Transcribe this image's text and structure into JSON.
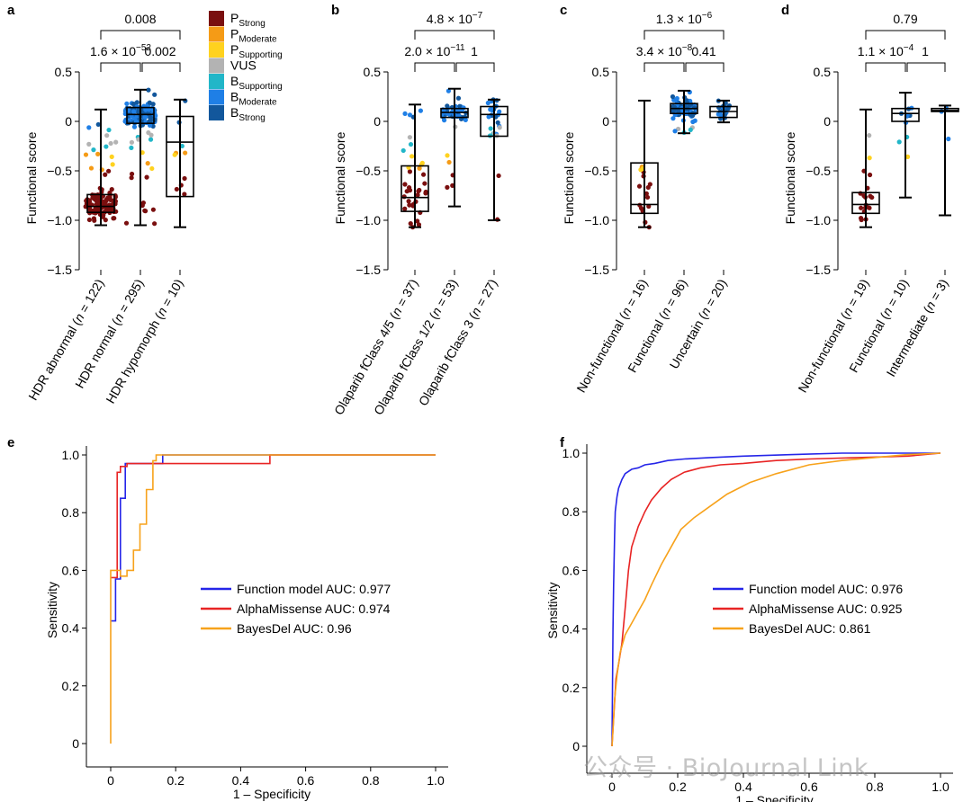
{
  "colors": {
    "P_Strong": "#7a0f0f",
    "P_Moderate": "#f59b16",
    "P_Supporting": "#ffd21f",
    "VUS": "#b3b3b3",
    "B_Supporting": "#21b6c8",
    "B_Moderate": "#1f7fe6",
    "B_Strong": "#12579c",
    "roc_function": "#2525e8",
    "roc_alpha": "#e82424",
    "roc_bayes": "#f7a21b"
  },
  "legend": [
    {
      "key": "P_Strong",
      "base": "P",
      "sub": "Strong"
    },
    {
      "key": "P_Moderate",
      "base": "P",
      "sub": "Moderate"
    },
    {
      "key": "P_Supporting",
      "base": "P",
      "sub": "Supporting"
    },
    {
      "key": "VUS",
      "base": "VUS",
      "sub": ""
    },
    {
      "key": "B_Supporting",
      "base": "B",
      "sub": "Supporting"
    },
    {
      "key": "B_Moderate",
      "base": "B",
      "sub": "Moderate"
    },
    {
      "key": "B_Strong",
      "base": "B",
      "sub": "Strong"
    }
  ],
  "watermark": "公众号 · BioJournal Link",
  "chart_data": [
    {
      "panel": "a",
      "type": "box",
      "ylabel": "Functional score",
      "ylim": [
        -1.5,
        0.5
      ],
      "yticks": [
        0.5,
        0,
        -0.5,
        -1.0,
        -1.5
      ],
      "ytick_labels": [
        "0.5",
        "0",
        "−0.5",
        "−1.0",
        "−1.5"
      ],
      "categories": [
        "HDR abnormal (n = 122)",
        "HDR normal (n = 295)",
        "HDR hypomorph (n = 10)"
      ],
      "cat_labels": [
        {
          "pre": "HDR abnormal (",
          "it": "n",
          "post": " = 122)"
        },
        {
          "pre": "HDR normal (",
          "it": "n",
          "post": " = 295)"
        },
        {
          "pre": "HDR hypomorph (",
          "it": "n",
          "post": " = 10)"
        }
      ],
      "boxes": [
        {
          "min": -1.05,
          "q1": -0.92,
          "median": -0.86,
          "q3": -0.74,
          "max": 0.12
        },
        {
          "min": -1.05,
          "q1": -0.02,
          "median": 0.07,
          "q3": 0.14,
          "max": 0.32
        },
        {
          "min": -1.07,
          "q1": -0.76,
          "median": -0.21,
          "q3": 0.05,
          "max": 0.22
        }
      ],
      "pvalues": [
        {
          "from": 0,
          "to": 1,
          "level": 1,
          "mant": "1.6",
          "exp": "−52"
        },
        {
          "from": 1,
          "to": 2,
          "level": 1,
          "text": "0.002"
        },
        {
          "from": 0,
          "to": 2,
          "level": 2,
          "text": "0.008"
        }
      ]
    },
    {
      "panel": "b",
      "type": "box",
      "ylabel": "Functional score",
      "ylim": [
        -1.5,
        0.5
      ],
      "yticks": [
        0.5,
        0,
        -0.5,
        -1.0,
        -1.5
      ],
      "ytick_labels": [
        "0.5",
        "0",
        "−0.5",
        "−1.0",
        "−1.5"
      ],
      "categories": [
        "Olaparib fClass 4/5 (n = 37)",
        "Olaparib fClass 1/2 (n = 53)",
        "Olaparib fClass 3 (n = 27)"
      ],
      "cat_labels": [
        {
          "pre": "Olaparib fClass 4/5 (",
          "it": "n",
          "post": " = 37)"
        },
        {
          "pre": "Olaparib fClass 1/2 (",
          "it": "n",
          "post": " = 53)"
        },
        {
          "pre": "Olaparib fClass 3 (",
          "it": "n",
          "post": " = 27)"
        }
      ],
      "boxes": [
        {
          "min": -1.07,
          "q1": -0.91,
          "median": -0.77,
          "q3": -0.45,
          "max": 0.17
        },
        {
          "min": -0.86,
          "q1": 0.04,
          "median": 0.09,
          "q3": 0.13,
          "max": 0.33
        },
        {
          "min": -1.0,
          "q1": -0.15,
          "median": 0.07,
          "q3": 0.15,
          "max": 0.22
        }
      ],
      "pvalues": [
        {
          "from": 0,
          "to": 1,
          "level": 1,
          "mant": "2.0",
          "exp": "−11"
        },
        {
          "from": 1,
          "to": 2,
          "level": 1,
          "text": "1"
        },
        {
          "from": 0,
          "to": 2,
          "level": 2,
          "mant": "4.8",
          "exp": "−7"
        }
      ]
    },
    {
      "panel": "c",
      "type": "box",
      "ylabel": "Functional score",
      "ylim": [
        -1.5,
        0.5
      ],
      "yticks": [
        0.5,
        0,
        -0.5,
        -1.0,
        -1.5
      ],
      "ytick_labels": [
        "0.5",
        "0",
        "−0.5",
        "−1.0",
        "−1.5"
      ],
      "categories": [
        "Non-functional (n = 16)",
        "Functional (n = 96)",
        "Uncertain (n = 20)"
      ],
      "cat_labels": [
        {
          "pre": "Non-functional (",
          "it": "n",
          "post": " = 16)"
        },
        {
          "pre": "Functional (",
          "it": "n",
          "post": " = 96)"
        },
        {
          "pre": "Uncertain (",
          "it": "n",
          "post": " = 20)"
        }
      ],
      "boxes": [
        {
          "min": -1.07,
          "q1": -0.93,
          "median": -0.84,
          "q3": -0.42,
          "max": 0.21
        },
        {
          "min": -0.12,
          "q1": 0.08,
          "median": 0.13,
          "q3": 0.18,
          "max": 0.31
        },
        {
          "min": -0.01,
          "q1": 0.04,
          "median": 0.1,
          "q3": 0.15,
          "max": 0.21
        }
      ],
      "pvalues": [
        {
          "from": 0,
          "to": 1,
          "level": 1,
          "mant": "3.4",
          "exp": "−8"
        },
        {
          "from": 1,
          "to": 2,
          "level": 1,
          "text": "0.41"
        },
        {
          "from": 0,
          "to": 2,
          "level": 2,
          "mant": "1.3",
          "exp": "−6"
        }
      ]
    },
    {
      "panel": "d",
      "type": "box",
      "ylabel": "Functional score",
      "ylim": [
        -1.5,
        0.5
      ],
      "yticks": [
        0.5,
        0,
        -0.5,
        -1.0,
        -1.5
      ],
      "ytick_labels": [
        "0.5",
        "0",
        "−0.5",
        "−1.0",
        "−1.5"
      ],
      "categories": [
        "Non-functional (n = 19)",
        "Functional (n = 10)",
        "Intermediate (n = 3)"
      ],
      "cat_labels": [
        {
          "pre": "Non-functional (",
          "it": "n",
          "post": " = 19)"
        },
        {
          "pre": "Functional (",
          "it": "n",
          "post": " = 10)"
        },
        {
          "pre": "Intermediate (",
          "it": "n",
          "post": " = 3)"
        }
      ],
      "boxes": [
        {
          "min": -1.07,
          "q1": -0.93,
          "median": -0.84,
          "q3": -0.72,
          "max": 0.12
        },
        {
          "min": -0.77,
          "q1": 0.0,
          "median": 0.08,
          "q3": 0.13,
          "max": 0.29
        },
        {
          "min": -0.95,
          "q1": 0.1,
          "median": 0.11,
          "q3": 0.13,
          "max": 0.16
        }
      ],
      "pvalues": [
        {
          "from": 0,
          "to": 1,
          "level": 1,
          "mant": "1.1",
          "exp": "−4"
        },
        {
          "from": 1,
          "to": 2,
          "level": 1,
          "text": "1"
        },
        {
          "from": 0,
          "to": 2,
          "level": 2,
          "text": "0.79"
        }
      ]
    },
    {
      "panel": "e",
      "type": "line",
      "xlabel": "1 – Specificity",
      "ylabel": "Sensitivity",
      "xlim": [
        0,
        1
      ],
      "ylim": [
        0,
        1
      ],
      "xticks": [
        0,
        0.2,
        0.4,
        0.6,
        0.8,
        1.0
      ],
      "xtick_labels": [
        "0",
        "0.2",
        "0.4",
        "0.6",
        "0.8",
        "1.0"
      ],
      "yticks": [
        0,
        0.2,
        0.4,
        0.6,
        0.8,
        1.0
      ],
      "ytick_labels": [
        "0",
        "0.2",
        "0.4",
        "0.6",
        "0.8",
        "1.0"
      ],
      "legend_placement": "center-right",
      "series": [
        {
          "name": "Function model AUC: 0.977",
          "color": "#2525e8",
          "x": [
            0,
            0.015,
            0.015,
            0.03,
            0.03,
            0.045,
            0.045,
            0.08,
            0.08,
            0.085,
            0.085,
            0.16,
            0.16,
            1.0
          ],
          "y": [
            0.425,
            0.425,
            0.57,
            0.57,
            0.85,
            0.85,
            0.97,
            0.97,
            0.97,
            0.97,
            0.97,
            0.97,
            1.0,
            1.0
          ]
        },
        {
          "name": "AlphaMissense AUC: 0.974",
          "color": "#e82424",
          "x": [
            0,
            0.02,
            0.02,
            0.03,
            0.03,
            0.05,
            0.05,
            0.49,
            0.49,
            1.0
          ],
          "y": [
            0.575,
            0.575,
            0.94,
            0.94,
            0.96,
            0.96,
            0.97,
            0.97,
            1.0,
            1.0
          ]
        },
        {
          "name": "BayesDel AUC: 0.96",
          "color": "#f7a21b",
          "x": [
            0,
            0,
            0.03,
            0.03,
            0.05,
            0.05,
            0.07,
            0.07,
            0.09,
            0.09,
            0.11,
            0.11,
            0.13,
            0.13,
            0.14,
            0.14,
            1.0
          ],
          "y": [
            0,
            0.6,
            0.6,
            0.58,
            0.58,
            0.6,
            0.6,
            0.67,
            0.67,
            0.76,
            0.76,
            0.88,
            0.88,
            0.98,
            0.98,
            1.0,
            1.0
          ]
        }
      ]
    },
    {
      "panel": "f",
      "type": "line",
      "xlabel": "1 – Specificity",
      "ylabel": "Sensitivity",
      "xlim": [
        0,
        1
      ],
      "ylim": [
        0,
        1
      ],
      "xticks": [
        0,
        0.2,
        0.4,
        0.6,
        0.8,
        1.0
      ],
      "xtick_labels": [
        "0",
        "0.2",
        "0.4",
        "0.6",
        "0.8",
        "1.0"
      ],
      "yticks": [
        0,
        0.2,
        0.4,
        0.6,
        0.8,
        1.0
      ],
      "ytick_labels": [
        "0",
        "0.2",
        "0.4",
        "0.6",
        "0.8",
        "1.0"
      ],
      "legend_placement": "center-right",
      "series": [
        {
          "name": "Function model AUC: 0.976",
          "color": "#2525e8",
          "x": [
            0,
            0.003,
            0.005,
            0.008,
            0.01,
            0.015,
            0.02,
            0.03,
            0.04,
            0.06,
            0.08,
            0.1,
            0.13,
            0.17,
            0.22,
            0.3,
            0.4,
            0.55,
            0.7,
            0.85,
            1.0
          ],
          "y": [
            0,
            0.4,
            0.55,
            0.72,
            0.8,
            0.85,
            0.88,
            0.91,
            0.93,
            0.945,
            0.95,
            0.96,
            0.965,
            0.975,
            0.98,
            0.985,
            0.99,
            0.995,
            1.0,
            1.0,
            1.0
          ]
        },
        {
          "name": "AlphaMissense AUC: 0.925",
          "color": "#e82424",
          "x": [
            0,
            0.004,
            0.008,
            0.012,
            0.02,
            0.03,
            0.04,
            0.05,
            0.06,
            0.08,
            0.1,
            0.12,
            0.15,
            0.18,
            0.22,
            0.27,
            0.33,
            0.4,
            0.5,
            0.6,
            0.75,
            0.9,
            1.0
          ],
          "y": [
            0,
            0.08,
            0.15,
            0.23,
            0.28,
            0.35,
            0.47,
            0.6,
            0.68,
            0.75,
            0.8,
            0.84,
            0.88,
            0.91,
            0.935,
            0.95,
            0.96,
            0.965,
            0.975,
            0.98,
            0.985,
            0.99,
            1.0
          ]
        },
        {
          "name": "BayesDel AUC: 0.861",
          "color": "#f7a21b",
          "x": [
            0,
            0.004,
            0.008,
            0.015,
            0.025,
            0.04,
            0.06,
            0.08,
            0.1,
            0.12,
            0.15,
            0.18,
            0.21,
            0.25,
            0.3,
            0.35,
            0.42,
            0.5,
            0.6,
            0.7,
            0.8,
            0.9,
            1.0
          ],
          "y": [
            0,
            0.08,
            0.16,
            0.24,
            0.32,
            0.38,
            0.42,
            0.46,
            0.5,
            0.55,
            0.62,
            0.68,
            0.74,
            0.78,
            0.82,
            0.86,
            0.9,
            0.93,
            0.96,
            0.975,
            0.985,
            0.995,
            1.0
          ]
        }
      ]
    }
  ]
}
